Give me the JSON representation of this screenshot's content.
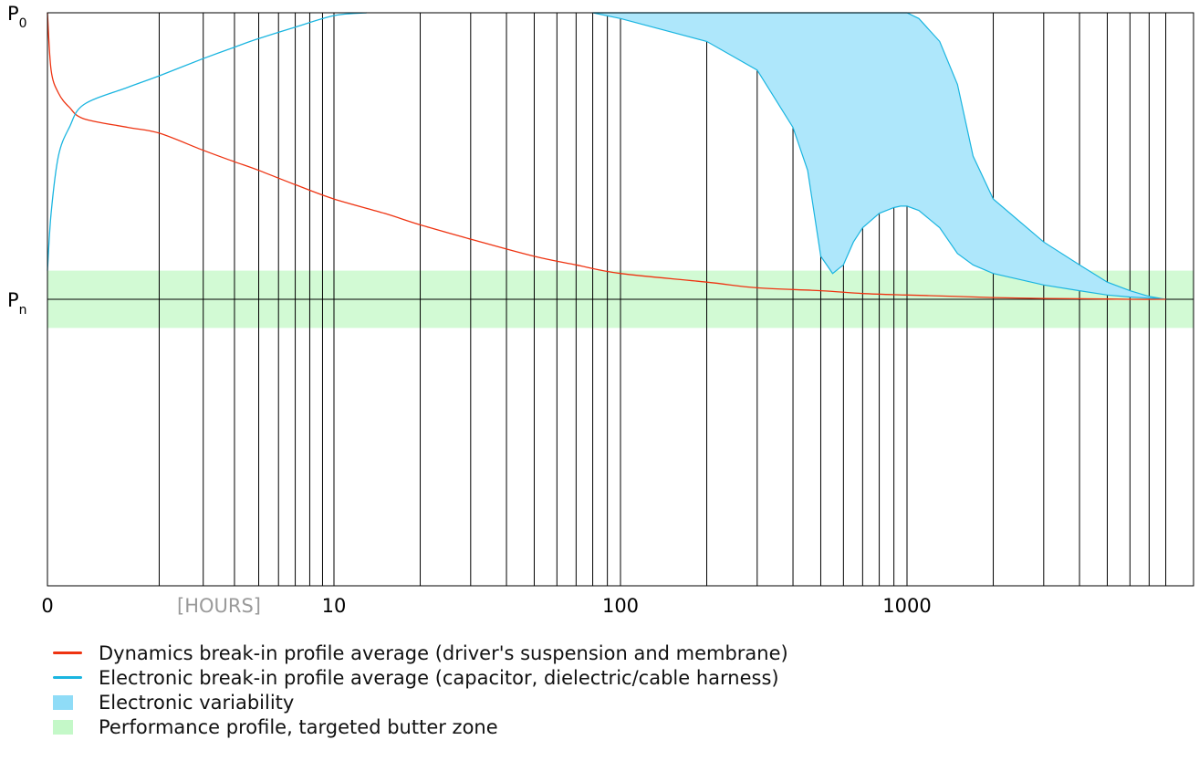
{
  "chart_data": {
    "type": "line",
    "title": "",
    "xlabel": "[HOURS]",
    "ylabel": "",
    "x_scale": "log",
    "xlim": [
      0,
      8000
    ],
    "x_tick_labels": [
      "0",
      "10",
      "100",
      "1000"
    ],
    "x_tick_values": [
      0,
      10,
      100,
      1000
    ],
    "y_tick_labels": [
      "P0",
      "Pn"
    ],
    "grid": "vertical",
    "gridlines_x": [
      2,
      3,
      4,
      5,
      6,
      7,
      8,
      9,
      10,
      20,
      30,
      40,
      50,
      60,
      70,
      80,
      90,
      100,
      200,
      300,
      400,
      500,
      600,
      700,
      800,
      900,
      1000,
      2000,
      3000,
      4000,
      5000,
      6000,
      7000,
      8000
    ],
    "ylim": [
      -1,
      1
    ],
    "y_levels": {
      "P0": 1,
      "Pn": 0
    },
    "butter_zone": [
      -0.1,
      0.1
    ],
    "series": [
      {
        "name": "Dynamics break-in profile average (driver's suspension and membrane)",
        "color": "#ee3311",
        "x": [
          0,
          0.1,
          0.3,
          0.6,
          1,
          1.5,
          2,
          3,
          4,
          5,
          7,
          10,
          15,
          20,
          30,
          50,
          70,
          100,
          200,
          300,
          500,
          700,
          1000,
          1500,
          2000,
          3000,
          4000,
          5000,
          6000,
          8000
        ],
        "y": [
          1,
          0.8,
          0.72,
          0.67,
          0.63,
          0.6,
          0.58,
          0.52,
          0.48,
          0.45,
          0.4,
          0.35,
          0.3,
          0.26,
          0.21,
          0.15,
          0.12,
          0.09,
          0.06,
          0.04,
          0.03,
          0.02,
          0.015,
          0.01,
          0.006,
          0.003,
          0.002,
          0.001,
          0,
          0
        ]
      },
      {
        "name": "Electronic break-in profile average (capacitor, dielectric/cable harness)",
        "color": "#1ab5e0",
        "x": [
          0,
          0.1,
          0.3,
          0.6,
          1,
          1.5,
          2,
          3,
          4,
          5,
          7,
          10,
          13
        ],
        "y": [
          0.1,
          0.3,
          0.5,
          0.6,
          0.68,
          0.74,
          0.78,
          0.84,
          0.88,
          0.91,
          0.95,
          0.99,
          1
        ]
      }
    ],
    "bands": [
      {
        "name": "Electronic variability",
        "color": "#aee7fb",
        "edge_color": "#1ab5e0",
        "x": [
          80,
          100,
          200,
          300,
          400,
          450,
          500,
          550,
          600,
          650,
          700,
          800,
          900,
          950,
          1000,
          1100,
          1300,
          1500,
          1700,
          2000,
          3000,
          4000,
          5000,
          6000,
          7000,
          8000
        ],
        "lower": [
          1,
          0.98,
          0.9,
          0.8,
          0.6,
          0.45,
          0.15,
          0.09,
          0.12,
          0.2,
          0.25,
          0.3,
          0.32,
          0.325,
          0.325,
          0.31,
          0.25,
          0.16,
          0.12,
          0.09,
          0.05,
          0.03,
          0.015,
          0.008,
          0.004,
          0
        ],
        "upper": [
          1,
          1,
          1,
          1,
          1,
          1,
          1,
          1,
          1,
          1,
          1,
          1,
          1,
          1,
          1,
          0.98,
          0.9,
          0.75,
          0.5,
          0.35,
          0.2,
          0.12,
          0.06,
          0.03,
          0.01,
          0
        ]
      }
    ],
    "legend": [
      {
        "label": "Dynamics break-in profile average (driver's suspension and membrane)",
        "kind": "line",
        "color": "#ee3311"
      },
      {
        "label": "Electronic break-in profile average (capacitor, dielectric/cable harness)",
        "kind": "line",
        "color": "#1ab5e0"
      },
      {
        "label": "Electronic variability",
        "kind": "fill",
        "color": "#8fdcf7"
      },
      {
        "label": "Performance profile, targeted butter zone",
        "kind": "fill",
        "color": "#c4f8c8"
      }
    ],
    "legend_position": "bottom-left"
  }
}
